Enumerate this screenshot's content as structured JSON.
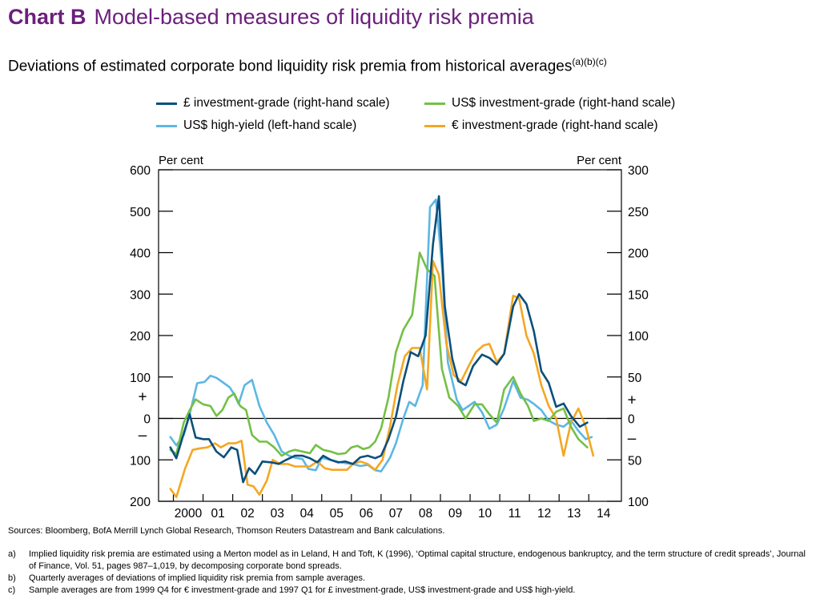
{
  "header": {
    "tag": "Chart B",
    "title": "Model-based measures of liquidity risk premia",
    "subtitle": "Deviations of estimated corporate bond liquidity risk premia from historical averages",
    "subtitle_sup": "(a)(b)(c)"
  },
  "colors": {
    "title": "#6b1f7c",
    "gbp_ig": "#0b4f7c",
    "usd_ig": "#74c045",
    "usd_hy": "#5db7e3",
    "eur_ig": "#f4a722"
  },
  "notes": {
    "sources": "Sources:  Bloomberg, BofA Merrill Lynch Global Research, Thomson Reuters Datastream and Bank calculations.",
    "footnotes": [
      {
        "key": "a)",
        "text": "Implied liquidity risk premia are estimated using a Merton model as in Leland, H and Toft, K (1996), ‘Optimal capital structure, endogenous bankruptcy, and the term structure of credit spreads’, Journal of Finance, Vol. 51, pages 987–1,019, by decomposing corporate bond spreads."
      },
      {
        "key": "b)",
        "text": "Quarterly averages of deviations of implied liquidity risk premia from sample averages."
      },
      {
        "key": "c)",
        "text": "Sample averages are from 1999 Q4 for € investment-grade and 1997 Q1 for £ investment-grade, US$ investment-grade and US$ high-yield."
      }
    ]
  },
  "chart_data": {
    "type": "line",
    "left_axis": {
      "unit_label": "Per cent",
      "range": [
        -200,
        600
      ],
      "ticks": [
        600,
        500,
        400,
        300,
        200,
        100,
        0,
        -100,
        -200
      ],
      "tick_labels": [
        "600",
        "500",
        "400",
        "300",
        "200",
        "100",
        "0",
        "100",
        "200"
      ]
    },
    "right_axis": {
      "unit_label": "Per cent",
      "range": [
        -100,
        300
      ],
      "ticks": [
        300,
        250,
        200,
        150,
        100,
        50,
        0,
        -50,
        -100
      ],
      "tick_labels": [
        "300",
        "250",
        "200",
        "150",
        "100",
        "50",
        "0",
        "50",
        "100"
      ]
    },
    "sign_markers": {
      "plus": "+",
      "minus": "–"
    },
    "x_axis": {
      "range": [
        1999.5,
        2015.1
      ],
      "ticks": [
        2000,
        2001,
        2002,
        2003,
        2004,
        2005,
        2006,
        2007,
        2008,
        2009,
        2010,
        2011,
        2012,
        2013,
        2014
      ],
      "tick_labels": [
        "2000",
        "01",
        "02",
        "03",
        "04",
        "05",
        "06",
        "07",
        "08",
        "09",
        "10",
        "11",
        "12",
        "13",
        "14"
      ]
    },
    "series": [
      {
        "name": "£ investment-grade (right-hand scale)",
        "axis": "right",
        "color": "#0b4f7c",
        "legend_pos": "top-left",
        "points": [
          [
            1999.9,
            -35
          ],
          [
            2000.1,
            -48
          ],
          [
            2000.35,
            -18
          ],
          [
            2000.55,
            5
          ],
          [
            2000.75,
            -23
          ],
          [
            2001.0,
            -25
          ],
          [
            2001.2,
            -25
          ],
          [
            2001.45,
            -40
          ],
          [
            2001.7,
            -47
          ],
          [
            2001.95,
            -35
          ],
          [
            2002.15,
            -38
          ],
          [
            2002.35,
            -77
          ],
          [
            2002.55,
            -60
          ],
          [
            2002.75,
            -67
          ],
          [
            2003.0,
            -52
          ],
          [
            2003.3,
            -53
          ],
          [
            2003.55,
            -55
          ],
          [
            2003.8,
            -50
          ],
          [
            2004.1,
            -45
          ],
          [
            2004.35,
            -45
          ],
          [
            2004.6,
            -48
          ],
          [
            2004.85,
            -53
          ],
          [
            2005.05,
            -45
          ],
          [
            2005.3,
            -50
          ],
          [
            2005.55,
            -53
          ],
          [
            2005.8,
            -52
          ],
          [
            2006.05,
            -55
          ],
          [
            2006.3,
            -47
          ],
          [
            2006.55,
            -45
          ],
          [
            2006.8,
            -48
          ],
          [
            2007.0,
            -45
          ],
          [
            2007.25,
            -25
          ],
          [
            2007.5,
            2
          ],
          [
            2007.75,
            45
          ],
          [
            2008.0,
            80
          ],
          [
            2008.25,
            75
          ],
          [
            2008.5,
            100
          ],
          [
            2008.75,
            210
          ],
          [
            2008.95,
            268
          ],
          [
            2009.15,
            135
          ],
          [
            2009.4,
            72
          ],
          [
            2009.6,
            45
          ],
          [
            2009.85,
            40
          ],
          [
            2010.1,
            63
          ],
          [
            2010.4,
            77
          ],
          [
            2010.65,
            73
          ],
          [
            2010.9,
            65
          ],
          [
            2011.15,
            78
          ],
          [
            2011.45,
            135
          ],
          [
            2011.65,
            150
          ],
          [
            2011.9,
            138
          ],
          [
            2012.15,
            105
          ],
          [
            2012.4,
            57
          ],
          [
            2012.65,
            43
          ],
          [
            2012.9,
            14
          ],
          [
            2013.15,
            18
          ],
          [
            2013.4,
            3
          ],
          [
            2013.7,
            -10
          ],
          [
            2013.95,
            -5
          ]
        ]
      },
      {
        "name": "US$ investment-grade (right-hand scale)",
        "axis": "right",
        "color": "#74c045",
        "legend_pos": "top-right",
        "points": [
          [
            1999.9,
            -38
          ],
          [
            2000.1,
            -43
          ],
          [
            2000.35,
            -5
          ],
          [
            2000.55,
            10
          ],
          [
            2000.75,
            23
          ],
          [
            2001.0,
            17
          ],
          [
            2001.25,
            15
          ],
          [
            2001.45,
            3
          ],
          [
            2001.65,
            10
          ],
          [
            2001.85,
            25
          ],
          [
            2002.05,
            30
          ],
          [
            2002.25,
            15
          ],
          [
            2002.45,
            10
          ],
          [
            2002.65,
            -20
          ],
          [
            2002.9,
            -28
          ],
          [
            2003.15,
            -28
          ],
          [
            2003.4,
            -35
          ],
          [
            2003.65,
            -45
          ],
          [
            2003.9,
            -40
          ],
          [
            2004.1,
            -38
          ],
          [
            2004.35,
            -40
          ],
          [
            2004.6,
            -42
          ],
          [
            2004.8,
            -32
          ],
          [
            2005.05,
            -38
          ],
          [
            2005.3,
            -40
          ],
          [
            2005.55,
            -43
          ],
          [
            2005.8,
            -42
          ],
          [
            2006.0,
            -35
          ],
          [
            2006.2,
            -33
          ],
          [
            2006.4,
            -37
          ],
          [
            2006.6,
            -35
          ],
          [
            2006.8,
            -28
          ],
          [
            2007.0,
            -12
          ],
          [
            2007.25,
            25
          ],
          [
            2007.5,
            80
          ],
          [
            2007.75,
            107
          ],
          [
            2008.05,
            125
          ],
          [
            2008.3,
            200
          ],
          [
            2008.55,
            180
          ],
          [
            2008.8,
            172
          ],
          [
            2009.05,
            60
          ],
          [
            2009.3,
            25
          ],
          [
            2009.6,
            15
          ],
          [
            2009.85,
            0
          ],
          [
            2010.15,
            17
          ],
          [
            2010.4,
            17
          ],
          [
            2010.65,
            5
          ],
          [
            2010.9,
            -5
          ],
          [
            2011.15,
            35
          ],
          [
            2011.45,
            50
          ],
          [
            2011.7,
            30
          ],
          [
            2011.95,
            15
          ],
          [
            2012.15,
            -3
          ],
          [
            2012.4,
            0
          ],
          [
            2012.65,
            -3
          ],
          [
            2012.9,
            8
          ],
          [
            2013.15,
            12
          ],
          [
            2013.4,
            -10
          ],
          [
            2013.65,
            -25
          ],
          [
            2013.95,
            -35
          ]
        ]
      },
      {
        "name": "US$ high-yield (left-hand scale)",
        "axis": "left",
        "color": "#5db7e3",
        "legend_pos": "bottom-left",
        "points": [
          [
            1999.9,
            -45
          ],
          [
            2000.1,
            -65
          ],
          [
            2000.35,
            -40
          ],
          [
            2000.55,
            10
          ],
          [
            2000.8,
            85
          ],
          [
            2001.05,
            88
          ],
          [
            2001.25,
            103
          ],
          [
            2001.45,
            98
          ],
          [
            2001.65,
            88
          ],
          [
            2001.9,
            75
          ],
          [
            2002.05,
            58
          ],
          [
            2002.2,
            35
          ],
          [
            2002.4,
            80
          ],
          [
            2002.65,
            93
          ],
          [
            2002.9,
            30
          ],
          [
            2003.15,
            -10
          ],
          [
            2003.4,
            -40
          ],
          [
            2003.65,
            -80
          ],
          [
            2003.9,
            -90
          ],
          [
            2004.1,
            -95
          ],
          [
            2004.35,
            -98
          ],
          [
            2004.55,
            -122
          ],
          [
            2004.8,
            -125
          ],
          [
            2005.0,
            -95
          ],
          [
            2005.3,
            -100
          ],
          [
            2005.55,
            -105
          ],
          [
            2005.8,
            -108
          ],
          [
            2006.05,
            -110
          ],
          [
            2006.3,
            -115
          ],
          [
            2006.55,
            -112
          ],
          [
            2006.8,
            -125
          ],
          [
            2007.0,
            -128
          ],
          [
            2007.3,
            -95
          ],
          [
            2007.5,
            -60
          ],
          [
            2007.75,
            0
          ],
          [
            2007.95,
            40
          ],
          [
            2008.15,
            30
          ],
          [
            2008.4,
            80
          ],
          [
            2008.65,
            510
          ],
          [
            2008.85,
            528
          ],
          [
            2009.05,
            370
          ],
          [
            2009.25,
            135
          ],
          [
            2009.55,
            45
          ],
          [
            2009.75,
            20
          ],
          [
            2009.95,
            30
          ],
          [
            2010.15,
            40
          ],
          [
            2010.4,
            15
          ],
          [
            2010.65,
            -25
          ],
          [
            2010.9,
            -15
          ],
          [
            2011.15,
            25
          ],
          [
            2011.45,
            90
          ],
          [
            2011.7,
            50
          ],
          [
            2011.95,
            45
          ],
          [
            2012.15,
            35
          ],
          [
            2012.4,
            20
          ],
          [
            2012.65,
            -5
          ],
          [
            2012.9,
            -15
          ],
          [
            2013.15,
            -20
          ],
          [
            2013.4,
            -5
          ],
          [
            2013.65,
            -30
          ],
          [
            2013.9,
            -50
          ],
          [
            2014.1,
            -45
          ]
        ]
      },
      {
        "name": "€ investment-grade (right-hand scale)",
        "axis": "right",
        "color": "#f4a722",
        "legend_pos": "bottom-right",
        "points": [
          [
            1999.9,
            -85
          ],
          [
            2000.1,
            -95
          ],
          [
            2000.4,
            -60
          ],
          [
            2000.65,
            -38
          ],
          [
            2000.9,
            -36
          ],
          [
            2001.15,
            -35
          ],
          [
            2001.4,
            -30
          ],
          [
            2001.6,
            -35
          ],
          [
            2001.85,
            -30
          ],
          [
            2002.1,
            -30
          ],
          [
            2002.3,
            -27
          ],
          [
            2002.5,
            -80
          ],
          [
            2002.7,
            -82
          ],
          [
            2002.9,
            -92
          ],
          [
            2003.15,
            -75
          ],
          [
            2003.35,
            -50
          ],
          [
            2003.6,
            -55
          ],
          [
            2003.85,
            -55
          ],
          [
            2004.1,
            -58
          ],
          [
            2004.35,
            -58
          ],
          [
            2004.6,
            -58
          ],
          [
            2004.85,
            -52
          ],
          [
            2005.1,
            -60
          ],
          [
            2005.35,
            -62
          ],
          [
            2005.6,
            -62
          ],
          [
            2005.85,
            -62
          ],
          [
            2006.05,
            -55
          ],
          [
            2006.3,
            -52
          ],
          [
            2006.55,
            -55
          ],
          [
            2006.8,
            -62
          ],
          [
            2007.05,
            -50
          ],
          [
            2007.3,
            -10
          ],
          [
            2007.55,
            40
          ],
          [
            2007.8,
            75
          ],
          [
            2008.05,
            85
          ],
          [
            2008.3,
            85
          ],
          [
            2008.55,
            35
          ],
          [
            2008.75,
            190
          ],
          [
            2008.95,
            173
          ],
          [
            2009.2,
            90
          ],
          [
            2009.45,
            52
          ],
          [
            2009.7,
            45
          ],
          [
            2009.95,
            63
          ],
          [
            2010.2,
            80
          ],
          [
            2010.45,
            88
          ],
          [
            2010.65,
            90
          ],
          [
            2010.9,
            68
          ],
          [
            2011.15,
            78
          ],
          [
            2011.45,
            148
          ],
          [
            2011.65,
            145
          ],
          [
            2011.9,
            100
          ],
          [
            2012.15,
            78
          ],
          [
            2012.4,
            40
          ],
          [
            2012.65,
            15
          ],
          [
            2012.9,
            0
          ],
          [
            2013.15,
            -45
          ],
          [
            2013.4,
            -5
          ],
          [
            2013.65,
            12
          ],
          [
            2013.9,
            -10
          ],
          [
            2014.15,
            -45
          ]
        ]
      }
    ]
  }
}
